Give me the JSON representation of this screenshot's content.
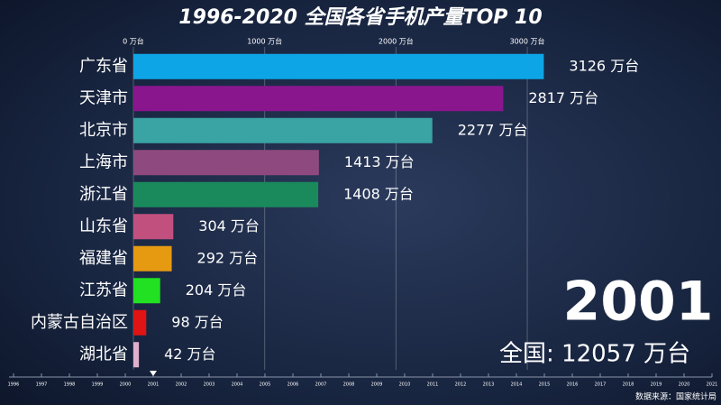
{
  "chart_data": {
    "type": "bar",
    "orientation": "horizontal",
    "title": "1996-2020 全国各省手机产量TOP 10",
    "categories": [
      "广东省",
      "天津市",
      "北京市",
      "上海市",
      "浙江省",
      "山东省",
      "福建省",
      "江苏省",
      "内蒙古自治区",
      "湖北省"
    ],
    "values": [
      3126,
      2817,
      2277,
      1413,
      1408,
      304,
      292,
      204,
      98,
      42
    ],
    "value_labels": [
      "3126 万台",
      "2817 万台",
      "2277 万台",
      "1413 万台",
      "1408 万台",
      "304 万台",
      "292 万台",
      "204 万台",
      "98 万台",
      "42 万台"
    ],
    "colors": [
      "#0ea5e6",
      "#8a168e",
      "#3aa3a3",
      "#8e4a7e",
      "#1a8a5c",
      "#c2507e",
      "#e59a12",
      "#22e022",
      "#e01414",
      "#e0b0cc"
    ],
    "xlim": [
      0,
      4400
    ],
    "xticks": [
      {
        "value": 0,
        "label": "0 万台"
      },
      {
        "value": 1000,
        "label": "1000 万台"
      },
      {
        "value": 2000,
        "label": "2000 万台"
      },
      {
        "value": 3000,
        "label": "3000 万台"
      }
    ],
    "grid": true
  },
  "year": "2001",
  "total": "全国: 12057 万台",
  "timeline": [
    "1996",
    "1997",
    "1998",
    "1999",
    "2000",
    "2001",
    "2002",
    "2003",
    "2004",
    "2005",
    "2006",
    "2007",
    "2008",
    "2009",
    "2010",
    "2011",
    "2012",
    "2013",
    "2014",
    "2015",
    "2016",
    "2017",
    "2018",
    "2019",
    "2020",
    "2021"
  ],
  "current_index": 5,
  "source": "数据来源：国家统计局"
}
